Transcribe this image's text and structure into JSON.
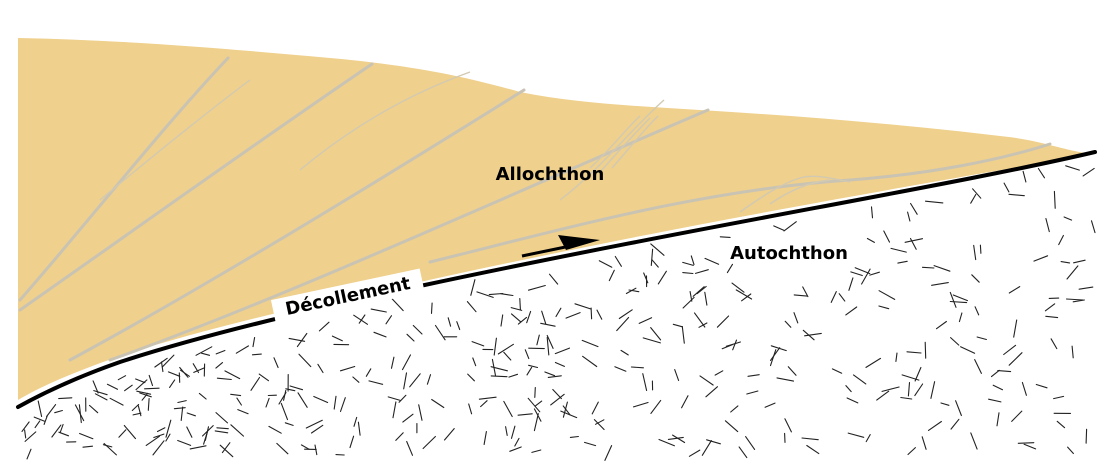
{
  "diagram": {
    "labels": {
      "allochthon": "Allochthon",
      "autochthon": "Autochthon",
      "decollement": "Décollement"
    },
    "colors": {
      "allochthon_fill": "#efd08c",
      "thrust_lines": "#c9c3b4",
      "decollement_line": "#000000",
      "autochthon_ticks": "#222222",
      "background": "#ffffff"
    },
    "motion_arrow": {
      "direction": "right",
      "meaning": "allochthon moves over décollement"
    }
  }
}
